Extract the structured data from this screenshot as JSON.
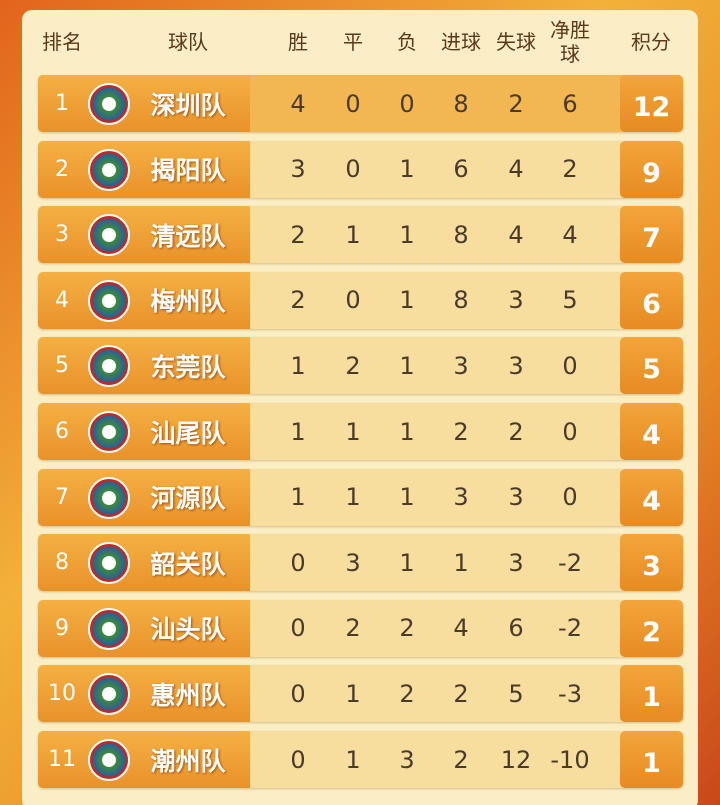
{
  "header": [
    "排名",
    "球队",
    "胜",
    "平",
    "负",
    "进球",
    "失球",
    "净胜球",
    "积分"
  ],
  "rows": [
    {
      "rank": 1,
      "team": "深圳队",
      "w": 4,
      "d": 0,
      "l": 0,
      "gf": 8,
      "ga": 2,
      "gd": 6,
      "pts": 12
    },
    {
      "rank": 2,
      "team": "揭阳队",
      "w": 3,
      "d": 0,
      "l": 1,
      "gf": 6,
      "ga": 4,
      "gd": 2,
      "pts": 9
    },
    {
      "rank": 3,
      "team": "清远队",
      "w": 2,
      "d": 1,
      "l": 1,
      "gf": 8,
      "ga": 4,
      "gd": 4,
      "pts": 7
    },
    {
      "rank": 4,
      "team": "梅州队",
      "w": 2,
      "d": 0,
      "l": 1,
      "gf": 8,
      "ga": 3,
      "gd": 5,
      "pts": 6
    },
    {
      "rank": 5,
      "team": "东莞队",
      "w": 1,
      "d": 2,
      "l": 1,
      "gf": 3,
      "ga": 3,
      "gd": 0,
      "pts": 5
    },
    {
      "rank": 6,
      "team": "汕尾队",
      "w": 1,
      "d": 1,
      "l": 1,
      "gf": 2,
      "ga": 2,
      "gd": 0,
      "pts": 4
    },
    {
      "rank": 7,
      "team": "河源队",
      "w": 1,
      "d": 1,
      "l": 1,
      "gf": 3,
      "ga": 3,
      "gd": 0,
      "pts": 4
    },
    {
      "rank": 8,
      "team": "韶关队",
      "w": 0,
      "d": 3,
      "l": 1,
      "gf": 1,
      "ga": 3,
      "gd": -2,
      "pts": 3
    },
    {
      "rank": 9,
      "team": "汕头队",
      "w": 0,
      "d": 2,
      "l": 2,
      "gf": 4,
      "ga": 6,
      "gd": -2,
      "pts": 2
    },
    {
      "rank": 10,
      "team": "惠州队",
      "w": 0,
      "d": 1,
      "l": 2,
      "gf": 2,
      "ga": 5,
      "gd": -3,
      "pts": 1
    },
    {
      "rank": 11,
      "team": "潮州队",
      "w": 0,
      "d": 1,
      "l": 3,
      "gf": 2,
      "ga": 12,
      "gd": -10,
      "pts": 1
    }
  ]
}
